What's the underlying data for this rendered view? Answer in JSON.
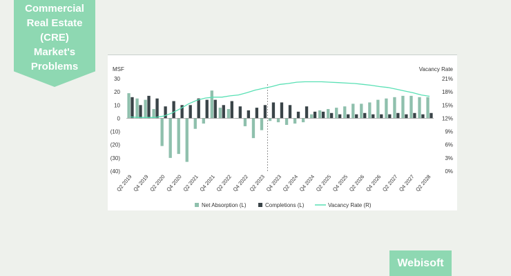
{
  "banner": {
    "title": "Commercial\nReal Estate\n(CRE)\nMarket's\nProblems"
  },
  "brand": {
    "name": "Webisoft"
  },
  "colors": {
    "background": "#eef1ec",
    "accent": "#8ed8b2",
    "net_absorption": "#8fc0ad",
    "completions": "#3a4448",
    "vacancy_rate": "#58e0b4"
  },
  "chart_data": {
    "type": "bar",
    "title": "",
    "ylabel_left": "MSF",
    "ylabel_right": "Vacancy Rate",
    "ylim_left": [
      -40,
      30
    ],
    "ylim_right": [
      0,
      21
    ],
    "yticks_left": [
      "30",
      "20",
      "10",
      "0",
      "(10)",
      "(20)",
      "(30)",
      "(40)"
    ],
    "yticks_right": [
      "21%",
      "18%",
      "15%",
      "12%",
      "9%",
      "6%",
      "3%",
      "0%"
    ],
    "categories": [
      "Q2 2019",
      "Q3 2019",
      "Q4 2019",
      "Q1 2020",
      "Q2 2020",
      "Q3 2020",
      "Q4 2020",
      "Q1 2021",
      "Q2 2021",
      "Q3 2021",
      "Q4 2021",
      "Q1 2022",
      "Q2 2022",
      "Q3 2022",
      "Q4 2022",
      "Q1 2023",
      "Q2 2023",
      "Q3 2023",
      "Q4 2023",
      "Q1 2024",
      "Q2 2024",
      "Q3 2024",
      "Q4 2024",
      "Q1 2025",
      "Q2 2025",
      "Q3 2025",
      "Q4 2025",
      "Q1 2026",
      "Q2 2026",
      "Q3 2026",
      "Q4 2026",
      "Q1 2027",
      "Q2 2027",
      "Q3 2027",
      "Q4 2027",
      "Q1 2028",
      "Q2 2028"
    ],
    "xtick_labels": [
      "Q2 2019",
      "Q4 2019",
      "Q2 2020",
      "Q4 2020",
      "Q2 2021",
      "Q4 2021",
      "Q2 2022",
      "Q4 2022",
      "Q2 2023",
      "Q4 2023",
      "Q2 2024",
      "Q4 2024",
      "Q2 2025",
      "Q4 2025",
      "Q2 2026",
      "Q4 2026",
      "Q2 2027",
      "Q4 2027",
      "Q2 2028"
    ],
    "forecast_start": "Q2 2023",
    "series": [
      {
        "name": "Net Absorption (L)",
        "axis": "left",
        "type": "bar",
        "values": [
          19,
          15,
          14,
          7,
          -21,
          -30,
          -27,
          -33,
          -8,
          -4,
          21,
          8,
          7,
          0,
          -6,
          -15,
          -9,
          -2,
          -3,
          -5,
          -4,
          -3,
          3,
          6,
          7,
          8,
          9,
          11,
          11,
          12,
          14,
          15,
          16,
          17,
          17,
          16,
          16
        ]
      },
      {
        "name": "Completions (L)",
        "axis": "left",
        "type": "bar",
        "values": [
          16,
          10,
          17,
          15,
          9,
          13,
          10,
          10,
          15,
          14,
          14,
          10,
          13,
          9,
          6,
          8,
          10,
          12,
          12,
          10,
          5,
          9,
          5,
          5,
          4,
          3,
          3,
          3,
          4,
          3,
          3,
          3,
          4,
          3,
          4,
          3,
          4
        ]
      },
      {
        "name": "Vacancy Rate (R)",
        "axis": "right",
        "type": "line",
        "values": [
          12.3,
          12.2,
          12.2,
          12.2,
          12.5,
          13.2,
          14.2,
          15.3,
          16.1,
          16.6,
          16.8,
          16.8,
          17.1,
          17.3,
          17.8,
          18.4,
          18.8,
          19.2,
          19.7,
          19.9,
          20.2,
          20.3,
          20.3,
          20.3,
          20.2,
          20.1,
          20.0,
          19.9,
          19.7,
          19.5,
          19.2,
          19.0,
          18.6,
          18.2,
          17.8,
          17.3,
          17.0
        ]
      }
    ],
    "legend_position": "bottom",
    "grid": false
  }
}
